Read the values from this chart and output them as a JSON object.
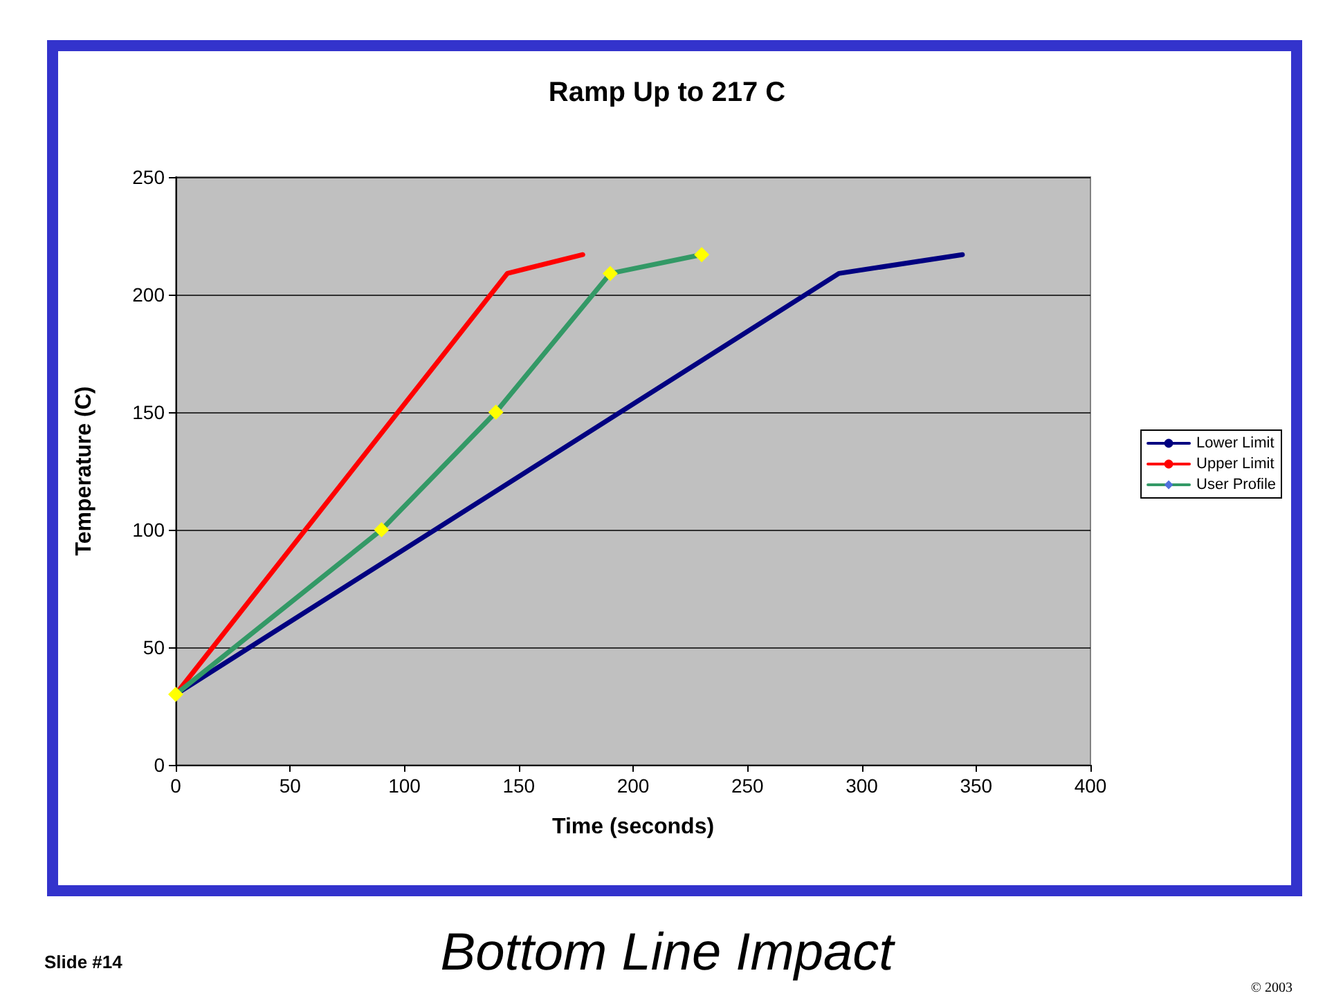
{
  "chart_data": {
    "type": "line",
    "title": "Ramp Up to 217 C",
    "subtitle": "Bottom Line Impact",
    "xlabel": "Time (seconds)",
    "ylabel": "Temperature (C)",
    "annotations": [
      "Slide #14",
      "© 2003"
    ],
    "series": [
      {
        "name": "Lower Limit",
        "color": "#000080",
        "marker": "none",
        "x": [
          0,
          290,
          344
        ],
        "values": [
          30,
          209,
          217
        ]
      },
      {
        "name": "Upper Limit",
        "color": "#ff0000",
        "marker": "none",
        "x": [
          0,
          145,
          178
        ],
        "values": [
          30,
          209,
          217
        ]
      },
      {
        "name": "User Profile",
        "color": "#339966",
        "marker": "diamond",
        "colors": [
          "#ffff00",
          "#ffff00",
          "#ffff00",
          "#ffff00",
          "#ffff00"
        ],
        "x": [
          0,
          90,
          140,
          190,
          230
        ],
        "values": [
          30,
          100,
          150,
          209,
          217
        ]
      }
    ],
    "xlim": [
      0,
      400
    ],
    "xticks": [
      0,
      50,
      100,
      150,
      200,
      250,
      300,
      350,
      400
    ],
    "ylim": [
      0,
      250
    ],
    "yticks": [
      0,
      50,
      100,
      150,
      200,
      250
    ],
    "grid": "y",
    "legend": "right",
    "line_style": "solid"
  }
}
